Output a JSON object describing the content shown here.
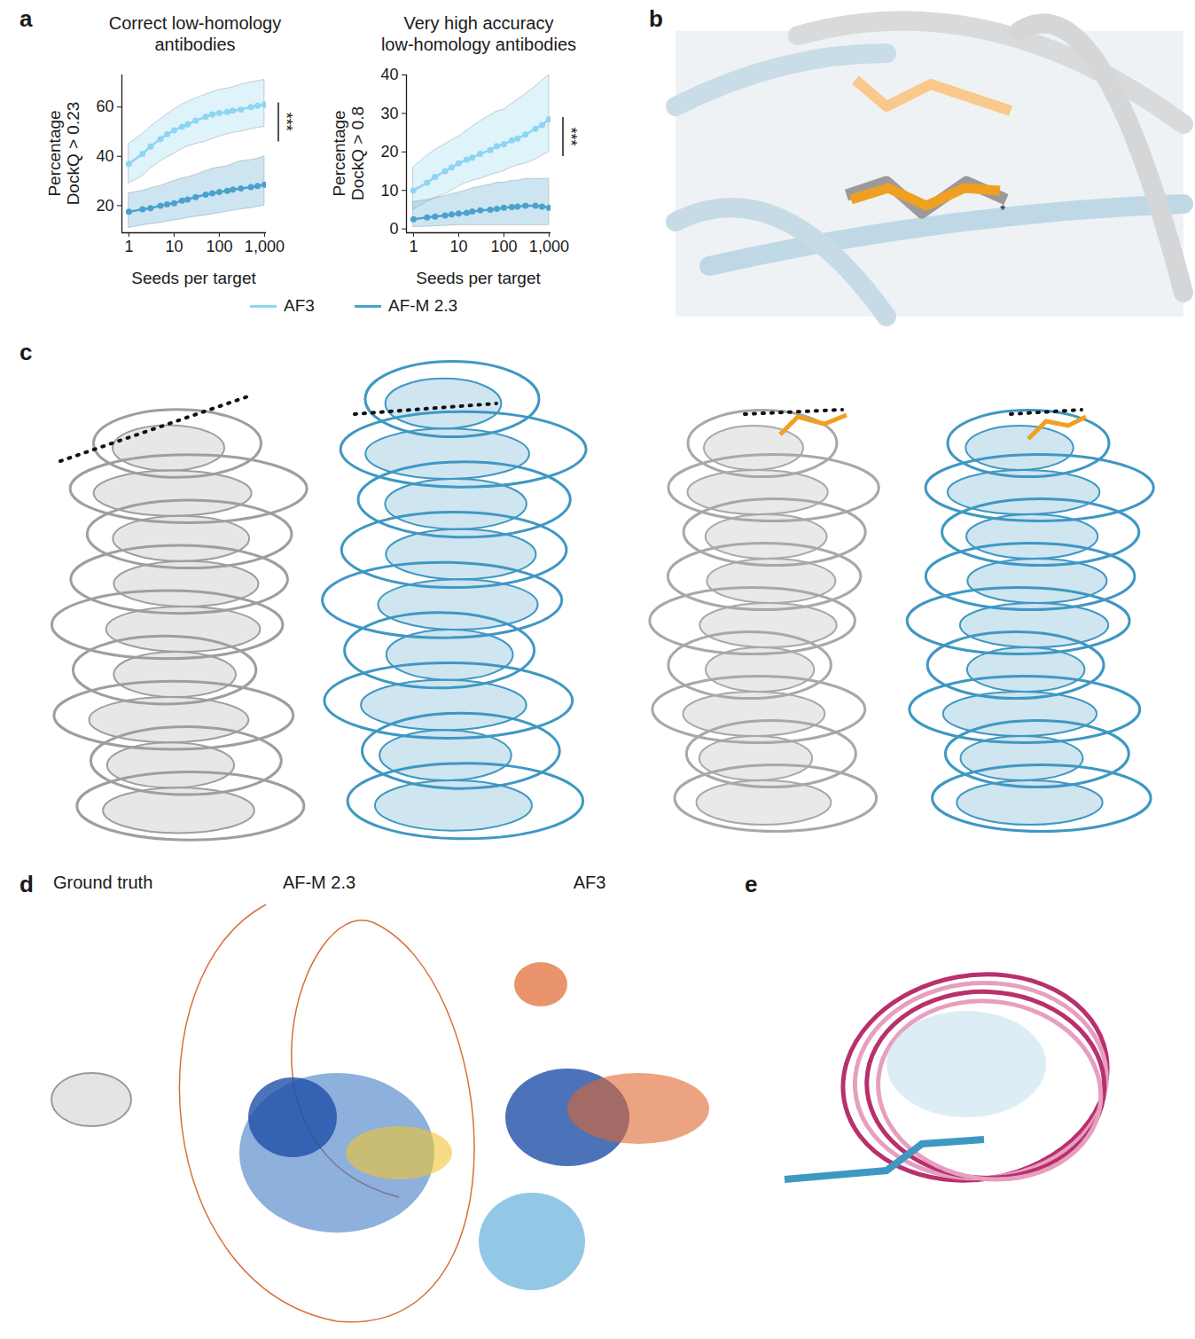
{
  "chart_data": [
    {
      "type": "line",
      "panel": "a",
      "title": [
        "Correct low-homology",
        "antibodies"
      ],
      "x_label": "Seeds per target",
      "y_label": [
        "Percentage",
        "DockQ > 0.23"
      ],
      "log": "x",
      "x": [
        1,
        2,
        3,
        5,
        7,
        10,
        15,
        20,
        30,
        50,
        70,
        100,
        150,
        200,
        300,
        500,
        700,
        1000
      ],
      "xlim": [
        0.7,
        1100
      ],
      "xticks": [
        1,
        10,
        100,
        {
          "value": 1000,
          "label": "1,000"
        }
      ],
      "ylim": [
        9,
        73
      ],
      "yticks": [
        20,
        40,
        60
      ],
      "legend": "bottom",
      "annotation": "***",
      "series": [
        {
          "name": "AF3",
          "color": "#8dd5f2",
          "marker": "circle",
          "values": [
            37,
            41,
            44,
            47,
            49,
            50.5,
            52,
            53,
            54.5,
            56,
            57,
            57.5,
            58,
            58.5,
            59,
            60,
            60.5,
            61
          ],
          "lower": [
            29,
            32,
            35,
            38,
            39.5,
            41,
            43,
            44,
            45,
            46,
            47,
            48,
            49,
            49.5,
            50,
            51,
            51.5,
            52
          ],
          "upper": [
            45,
            49,
            52,
            55,
            57,
            59,
            61,
            62,
            63.5,
            65,
            66,
            67,
            67.5,
            68,
            69,
            70,
            70.5,
            71
          ]
        },
        {
          "name": "AF-M 2.3",
          "color": "#4aa2cc",
          "marker": "circle",
          "values": [
            17.5,
            18.5,
            19,
            20,
            20.5,
            21,
            22,
            22.5,
            23.5,
            24.5,
            25,
            25.5,
            26,
            26.5,
            27,
            27.5,
            28,
            28.5
          ],
          "lower": [
            11,
            12,
            12.5,
            13,
            13.5,
            14,
            14.5,
            15,
            15.5,
            16,
            16.5,
            17,
            17.5,
            18,
            18.5,
            19,
            19.5,
            20
          ],
          "upper": [
            25,
            26,
            27,
            28,
            29,
            30,
            31,
            31.5,
            32.5,
            34,
            35,
            35.5,
            36,
            37,
            38,
            38.5,
            39,
            40
          ]
        }
      ]
    },
    {
      "type": "line",
      "title": [
        "Very high accuracy",
        "low-homology antibodies"
      ],
      "x_label": "Seeds per target",
      "y_label": [
        "Percentage",
        "DockQ > 0.8"
      ],
      "log": "x",
      "x": [
        1,
        2,
        3,
        5,
        7,
        10,
        15,
        20,
        30,
        50,
        70,
        100,
        150,
        200,
        300,
        500,
        700,
        1000
      ],
      "xlim": [
        0.7,
        1100
      ],
      "xticks": [
        1,
        10,
        100,
        {
          "value": 1000,
          "label": "1,000"
        }
      ],
      "ylim": [
        -1,
        40
      ],
      "yticks": [
        0,
        10,
        20,
        30,
        40
      ],
      "legend": "bottom",
      "annotation": "***",
      "series": [
        {
          "name": "AF3",
          "color": "#8dd5f2",
          "marker": "circle",
          "values": [
            10,
            12,
            13.5,
            15,
            16,
            17,
            18,
            18.5,
            19.5,
            20.5,
            21.5,
            22,
            23,
            23.5,
            24.5,
            26,
            27,
            28.5
          ],
          "lower": [
            5,
            7,
            8,
            9,
            10,
            11,
            12,
            12.5,
            13,
            14,
            14.5,
            15,
            16,
            16.5,
            17,
            18,
            19,
            20
          ],
          "upper": [
            16,
            19,
            20.5,
            22,
            23,
            24,
            25.5,
            26.5,
            28,
            29.5,
            30.5,
            31,
            32.5,
            33.5,
            35,
            37,
            38.5,
            40
          ]
        },
        {
          "name": "AF-M 2.3",
          "color": "#4aa2cc",
          "marker": "circle",
          "values": [
            2.5,
            3,
            3.2,
            3.5,
            3.8,
            4,
            4.2,
            4.5,
            4.8,
            5,
            5.2,
            5.5,
            5.7,
            5.8,
            6,
            6,
            5.8,
            5.5
          ],
          "lower": [
            0.5,
            0.6,
            0.7,
            0.8,
            0.9,
            1,
            1,
            1,
            1,
            1,
            1,
            1,
            1,
            1,
            1,
            1,
            1,
            1
          ],
          "upper": [
            7,
            7.5,
            8,
            8.5,
            9,
            9.5,
            10,
            10.5,
            11,
            11.5,
            12,
            12,
            12.5,
            12.5,
            13,
            13,
            13,
            13
          ]
        }
      ]
    }
  ],
  "panels": [
    {
      "label": "b",
      "annotation": "*"
    },
    {
      "label": "c"
    },
    {
      "label": "d",
      "captions": [
        "Ground truth",
        "AF-M 2.3",
        "AF3"
      ]
    },
    {
      "label": "e"
    }
  ]
}
